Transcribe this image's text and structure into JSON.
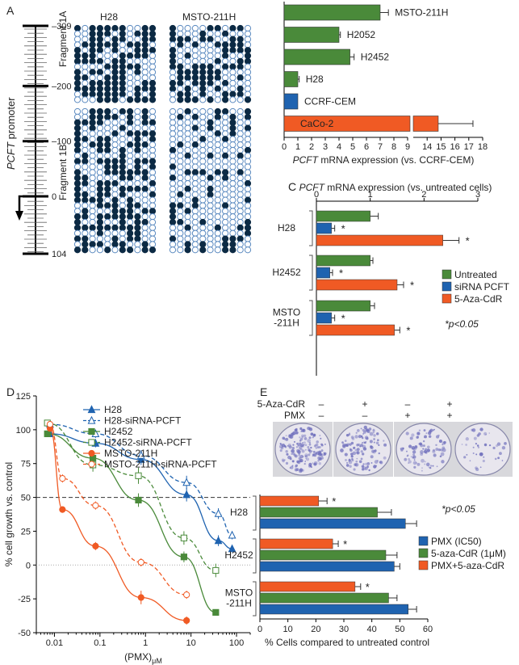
{
  "colors": {
    "green": "#4a8a3a",
    "blue": "#1f63b0",
    "orange": "#f05a24",
    "lightblue": "#2a8ad4",
    "methyl_dark": "#0c2a44",
    "methyl_open": "#5b8ac0",
    "dish": "#6e6ebc"
  },
  "panelA": {
    "letter": "A",
    "axis_title_italic": "PCFT",
    "axis_title_rest": " promoter",
    "ticks": [
      "-309",
      "-200",
      "-100",
      "0",
      "104"
    ],
    "fragment1": "Fragment 1A",
    "fragment2": "Fragment 1B",
    "col1": "H28",
    "col2": "MSTO-211H"
  },
  "chart_data": [
    {
      "panel": "B",
      "type": "bar",
      "orientation": "horizontal",
      "categories": [
        "MSTO-211H",
        "H2052",
        "H2452",
        "H28",
        "CCRF-CEM",
        "CaCo-2"
      ],
      "values": [
        7.0,
        4.0,
        4.8,
        1.0,
        1.0,
        14.8
      ],
      "errors": [
        0.6,
        0.1,
        0.3,
        0.1,
        0.0,
        2.5
      ],
      "series_colors": [
        "green",
        "green",
        "green",
        "green",
        "blue",
        "orange"
      ],
      "axis_break": [
        9,
        13
      ],
      "xlim": [
        0,
        18
      ],
      "ticks": [
        0,
        1,
        2,
        3,
        4,
        5,
        6,
        7,
        8,
        9,
        14,
        15,
        16,
        17,
        18
      ],
      "xlabel_italic": "PCFT",
      "xlabel_rest": " mRNA expression (vs. CCRF-CEM)"
    },
    {
      "panel": "C",
      "type": "bar",
      "orientation": "horizontal",
      "xlabel_italic": "PCFT",
      "xlabel_rest": " mRNA expression (vs. untreated cells)",
      "xlim": [
        0,
        3
      ],
      "ticks": [
        0,
        1,
        2,
        3
      ],
      "groups": [
        "H28",
        "H2452",
        "MSTO -211H"
      ],
      "group_lines": [
        [
          "H28"
        ],
        [
          "H2452"
        ],
        [
          "MSTO",
          "-211H"
        ]
      ],
      "series": [
        {
          "name": "Untreated",
          "color": "green",
          "values": [
            1.0,
            1.0,
            1.0
          ],
          "errors": [
            0.15,
            0.05,
            0.08
          ]
        },
        {
          "name": "siRNA PCFT",
          "color": "blue",
          "values": [
            0.28,
            0.25,
            0.28
          ],
          "errors": [
            0.06,
            0.05,
            0.06
          ]
        },
        {
          "name": "5-Aza-CdR",
          "color": "orange",
          "values": [
            2.35,
            1.5,
            1.45
          ],
          "errors": [
            0.3,
            0.12,
            0.1
          ]
        }
      ],
      "star": "*",
      "pvalue": "*p<0.05"
    },
    {
      "panel": "D",
      "type": "scatter",
      "xscale": "log",
      "ylabel": "% cell growth vs. control",
      "xlabel": "(PMX)",
      "xlabel_sub": "μM",
      "xlim": [
        0.004,
        200
      ],
      "ylim": [
        -50,
        125
      ],
      "yticks": [
        -50,
        -25,
        0,
        25,
        50,
        75,
        100,
        125
      ],
      "xticks": [
        0.01,
        0.1,
        1,
        10,
        100
      ],
      "xticklabels": [
        "0.01",
        "0.1",
        "1",
        "10",
        "100"
      ],
      "hline": 50,
      "series": [
        {
          "name": "H28",
          "color": "blue",
          "marker": "triangle",
          "fill": true,
          "dash": false,
          "x": [
            0.008,
            0.08,
            0.8,
            8,
            40,
            80
          ],
          "y": [
            97,
            90,
            78,
            52,
            18,
            12
          ],
          "err": [
            2,
            3,
            4,
            5,
            4,
            2
          ]
        },
        {
          "name": "H28-siRNA-PCFT",
          "color": "blue",
          "marker": "triangle",
          "fill": false,
          "dash": true,
          "x": [
            0.008,
            0.08,
            0.8,
            8,
            40,
            80
          ],
          "y": [
            104,
            97,
            81,
            61,
            38,
            22
          ],
          "err": [
            2,
            3,
            4,
            5,
            4,
            3
          ]
        },
        {
          "name": "H2452",
          "color": "green",
          "marker": "square",
          "fill": true,
          "dash": false,
          "x": [
            0.007,
            0.07,
            0.7,
            7,
            35
          ],
          "y": [
            97,
            79,
            48,
            6,
            -35
          ],
          "err": [
            2,
            5,
            5,
            4,
            2
          ]
        },
        {
          "name": "H2452-siRNA-PCFT",
          "color": "green",
          "marker": "square",
          "fill": false,
          "dash": true,
          "x": [
            0.007,
            0.07,
            0.7,
            7,
            35
          ],
          "y": [
            105,
            74,
            66,
            20,
            -4
          ],
          "err": [
            2,
            5,
            6,
            5,
            5
          ]
        },
        {
          "name": "MSTO-211H",
          "color": "orange",
          "marker": "circle",
          "fill": true,
          "dash": false,
          "x": [
            0.008,
            0.015,
            0.08,
            0.8,
            8
          ],
          "y": [
            101,
            41,
            14,
            -24,
            -41
          ],
          "err": [
            2,
            2,
            3,
            5,
            3
          ]
        },
        {
          "name": "MSTO-211H-siRNA-PCFT",
          "color": "orange",
          "marker": "circle",
          "fill": false,
          "dash": true,
          "x": [
            0.008,
            0.015,
            0.08,
            0.8,
            8
          ],
          "y": [
            104,
            64,
            44,
            2,
            -22
          ],
          "err": [
            2,
            3,
            3,
            3,
            3
          ]
        }
      ]
    },
    {
      "panel": "E",
      "type": "bar",
      "orientation": "horizontal",
      "xlabel": "% Cells compared to untreated control",
      "xlim": [
        0,
        60
      ],
      "ticks": [
        0,
        10,
        20,
        30,
        40,
        50,
        60
      ],
      "groups": [
        "H28",
        "H2452",
        "MSTO -211H"
      ],
      "group_lines": [
        [
          "H28"
        ],
        [
          "H2452"
        ],
        [
          "MSTO",
          "-211H"
        ]
      ],
      "series": [
        {
          "name": "PMX+5-aza-CdR",
          "color": "orange",
          "values": [
            21,
            26,
            34
          ],
          "errors": [
            3,
            2,
            2
          ]
        },
        {
          "name": "5-aza-CdR (1μM)",
          "color": "green",
          "values": [
            42,
            45,
            46
          ],
          "errors": [
            5,
            4,
            3
          ]
        },
        {
          "name": "PMX (IC50)",
          "color": "blue",
          "values": [
            52,
            48,
            53
          ],
          "errors": [
            4,
            2,
            3
          ]
        }
      ],
      "legend_order": [
        2,
        1,
        0
      ],
      "star": "*",
      "pvalue": "*p<0.05",
      "treat_rows": [
        {
          "label": "5-Aza-CdR",
          "marks": [
            "–",
            "+",
            "–",
            "+"
          ]
        },
        {
          "label": "PMX",
          "marks": [
            "–",
            "–",
            "+",
            "+"
          ]
        }
      ]
    }
  ],
  "letters": {
    "B": "B",
    "C": "C",
    "D": "D",
    "E": "E"
  }
}
